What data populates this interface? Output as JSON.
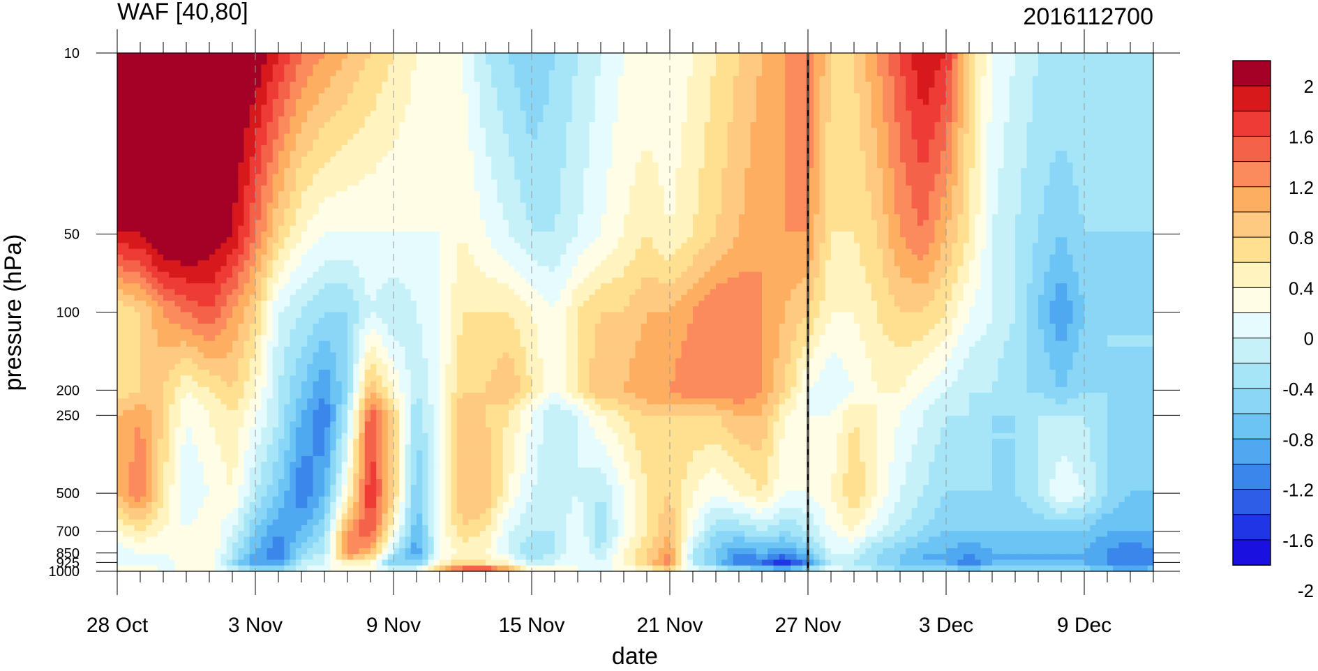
{
  "chart_data": {
    "type": "heatmap",
    "title_left": "WAF [40,80]",
    "title_right": "2016112700",
    "xlabel": "date",
    "ylabel": "pressure (hPa)",
    "x_tick_labels": [
      "28 Oct",
      "3 Nov",
      "9 Nov",
      "15 Nov",
      "21 Nov",
      "27 Nov",
      "3 Dec",
      "9 Dec"
    ],
    "x_tick_days": [
      0,
      6,
      12,
      18,
      24,
      30,
      36,
      42
    ],
    "x_range_days": [
      0,
      45
    ],
    "y_scale": "log",
    "y_range": [
      1000,
      10
    ],
    "y_tick_labels": [
      "10",
      "50",
      "100",
      "200",
      "250",
      "500",
      "700",
      "850",
      "925",
      "1000"
    ],
    "y_tick_values": [
      10,
      50,
      100,
      200,
      250,
      500,
      700,
      850,
      925,
      1000
    ],
    "marker_line_day": 30,
    "colorbar": {
      "levels_labels": [
        "2",
        "1.6",
        "1.2",
        "0.8",
        "0.4",
        "0",
        "-0.4",
        "-0.8",
        "-1.2",
        "-1.6",
        "-2"
      ],
      "colors": [
        "#a50026",
        "#d7191c",
        "#ee3b36",
        "#f4624a",
        "#fb8a5c",
        "#fdae61",
        "#fec980",
        "#fee090",
        "#fff3bf",
        "#fffde6",
        "#e6fbfd",
        "#c7f1f9",
        "#a6e5f7",
        "#8ad6f7",
        "#6cc4f5",
        "#4fa8f0",
        "#3b86ea",
        "#2e5ee5",
        "#2035e5",
        "#1a10e0"
      ]
    },
    "grid_dims": {
      "days": 46,
      "levels": 10
    },
    "values": [
      [
        2.2,
        1.8,
        0.4,
        0.4,
        0.8,
        0.8,
        0.2,
        -0.2,
        -0.2,
        0.2
      ],
      [
        2.2,
        1.8,
        0.6,
        0.6,
        1.0,
        1.2,
        0.4,
        0.0,
        0.0,
        0.2
      ],
      [
        2.2,
        2.2,
        1.0,
        0.6,
        0.6,
        0.4,
        0.2,
        0.0,
        -0.2,
        0.0
      ],
      [
        2.2,
        2.2,
        1.2,
        0.2,
        0.0,
        -0.2,
        0.0,
        0.2,
        0.2,
        0.0
      ],
      [
        2.2,
        2.0,
        1.4,
        0.4,
        0.2,
        0.0,
        0.2,
        0.2,
        0.2,
        0.0
      ],
      [
        2.2,
        1.8,
        1.0,
        0.6,
        0.4,
        0.2,
        -0.2,
        -0.4,
        -0.6,
        -0.2
      ],
      [
        2.0,
        1.2,
        0.6,
        0.2,
        0.0,
        -0.4,
        -0.8,
        -1.0,
        -1.2,
        -0.4
      ],
      [
        1.6,
        0.6,
        -0.2,
        -0.4,
        -0.4,
        -0.8,
        -1.2,
        -1.4,
        -1.2,
        -0.4
      ],
      [
        1.2,
        0.2,
        -0.4,
        -0.8,
        -1.0,
        -1.4,
        -1.0,
        -0.6,
        -0.4,
        -0.2
      ],
      [
        1.0,
        0.0,
        -0.6,
        -1.2,
        -1.4,
        -1.0,
        -0.6,
        -0.4,
        -0.2,
        0.0
      ],
      [
        0.8,
        0.0,
        -0.6,
        -0.6,
        -0.4,
        0.2,
        1.0,
        1.2,
        0.4,
        0.0
      ],
      [
        0.6,
        0.0,
        -0.2,
        0.8,
        1.4,
        1.6,
        1.4,
        0.8,
        0.2,
        0.0
      ],
      [
        0.4,
        0.0,
        -0.4,
        0.2,
        0.6,
        0.6,
        0.2,
        -0.4,
        -0.8,
        0.0
      ],
      [
        0.2,
        0.0,
        -0.2,
        -0.4,
        -0.6,
        -0.8,
        -1.0,
        -1.2,
        -0.8,
        0.0
      ],
      [
        0.0,
        0.0,
        0.0,
        0.0,
        0.0,
        0.0,
        0.0,
        0.0,
        0.2,
        0.8
      ],
      [
        0.0,
        0.2,
        0.4,
        0.6,
        0.8,
        0.8,
        0.6,
        0.2,
        0.6,
        1.6
      ],
      [
        -0.4,
        0.0,
        0.4,
        0.6,
        0.6,
        0.8,
        0.4,
        0.2,
        0.4,
        1.8
      ],
      [
        -0.6,
        -0.2,
        0.4,
        0.8,
        0.4,
        0.2,
        -0.2,
        -0.2,
        0.2,
        1.0
      ],
      [
        -0.8,
        -0.4,
        0.2,
        0.4,
        0.0,
        -0.2,
        -0.4,
        -0.6,
        -0.4,
        0.2
      ],
      [
        -0.6,
        -0.4,
        0.0,
        0.0,
        -0.4,
        -0.4,
        -0.4,
        -0.4,
        -0.2,
        0.2
      ],
      [
        -0.4,
        -0.2,
        0.4,
        0.4,
        -0.2,
        -0.2,
        0.0,
        0.0,
        0.0,
        0.0
      ],
      [
        -0.2,
        0.0,
        0.6,
        0.8,
        0.2,
        -0.4,
        -0.6,
        -0.4,
        -0.2,
        0.0
      ],
      [
        0.0,
        0.2,
        0.6,
        0.8,
        0.4,
        0.0,
        0.0,
        0.2,
        0.2,
        0.0
      ],
      [
        0.0,
        0.4,
        0.8,
        1.0,
        0.6,
        0.4,
        0.4,
        0.6,
        0.6,
        0.2
      ],
      [
        0.0,
        0.2,
        0.8,
        1.0,
        0.6,
        0.6,
        0.8,
        1.0,
        1.2,
        0.4
      ],
      [
        0.2,
        0.4,
        1.0,
        1.2,
        0.6,
        0.2,
        0.0,
        -0.4,
        -0.4,
        0.0
      ],
      [
        0.4,
        0.6,
        1.2,
        1.2,
        0.6,
        0.0,
        -0.6,
        -0.8,
        -0.8,
        -0.2
      ],
      [
        0.6,
        0.8,
        1.2,
        1.2,
        0.8,
        0.2,
        -0.6,
        -1.2,
        -1.4,
        -0.4
      ],
      [
        0.8,
        1.0,
        1.0,
        1.0,
        0.8,
        0.4,
        -0.4,
        -1.0,
        -1.4,
        -0.6
      ],
      [
        1.0,
        1.0,
        0.8,
        0.6,
        0.2,
        0.0,
        -0.6,
        -1.2,
        -1.8,
        -0.8
      ],
      [
        1.2,
        1.0,
        0.6,
        0.0,
        0.0,
        0.0,
        -0.4,
        -0.8,
        -1.2,
        -0.4
      ],
      [
        0.6,
        0.4,
        0.2,
        -0.2,
        0.0,
        0.2,
        0.0,
        -0.2,
        -0.4,
        0.0
      ],
      [
        0.6,
        0.4,
        0.2,
        0.0,
        0.4,
        0.6,
        0.2,
        -0.2,
        -0.4,
        -0.2
      ],
      [
        1.0,
        0.6,
        0.4,
        0.2,
        0.2,
        0.2,
        -0.2,
        -0.6,
        -0.6,
        -0.4
      ],
      [
        1.4,
        1.0,
        0.6,
        0.2,
        0.0,
        -0.2,
        -0.4,
        -0.8,
        -0.8,
        -0.6
      ],
      [
        1.8,
        1.2,
        0.6,
        0.0,
        -0.2,
        -0.4,
        -0.6,
        -1.0,
        -1.0,
        -0.6
      ],
      [
        1.6,
        0.8,
        0.4,
        -0.2,
        -0.4,
        -0.6,
        -0.8,
        -1.0,
        -1.0,
        -0.6
      ],
      [
        0.6,
        0.4,
        0.0,
        -0.4,
        -0.4,
        -0.6,
        -0.8,
        -1.2,
        -1.4,
        -0.6
      ],
      [
        0.0,
        -0.2,
        -0.2,
        -0.4,
        -0.6,
        -0.6,
        -0.8,
        -1.0,
        -1.0,
        -0.6
      ],
      [
        -0.2,
        -0.4,
        -0.4,
        -0.6,
        -0.6,
        -0.6,
        -0.8,
        -1.0,
        -1.0,
        -0.6
      ],
      [
        -0.4,
        -0.6,
        -0.8,
        -0.6,
        -0.4,
        -0.4,
        -0.8,
        -1.0,
        -1.0,
        -0.6
      ],
      [
        -0.4,
        -0.8,
        -1.2,
        -0.8,
        -0.4,
        0.0,
        -0.8,
        -1.0,
        -1.0,
        -0.6
      ],
      [
        -0.4,
        -0.6,
        -0.8,
        -0.6,
        -0.4,
        -0.2,
        -0.8,
        -1.0,
        -1.0,
        -0.6
      ],
      [
        -0.4,
        -0.6,
        -0.6,
        -0.6,
        -0.6,
        -0.6,
        -1.0,
        -1.2,
        -1.2,
        -0.8
      ],
      [
        -0.4,
        -0.6,
        -0.6,
        -0.6,
        -0.6,
        -0.8,
        -1.0,
        -1.4,
        -1.4,
        -1.0
      ],
      [
        -0.4,
        -0.6,
        -0.6,
        -0.6,
        -0.6,
        -0.8,
        -1.0,
        -1.2,
        -1.2,
        -0.8
      ]
    ]
  }
}
